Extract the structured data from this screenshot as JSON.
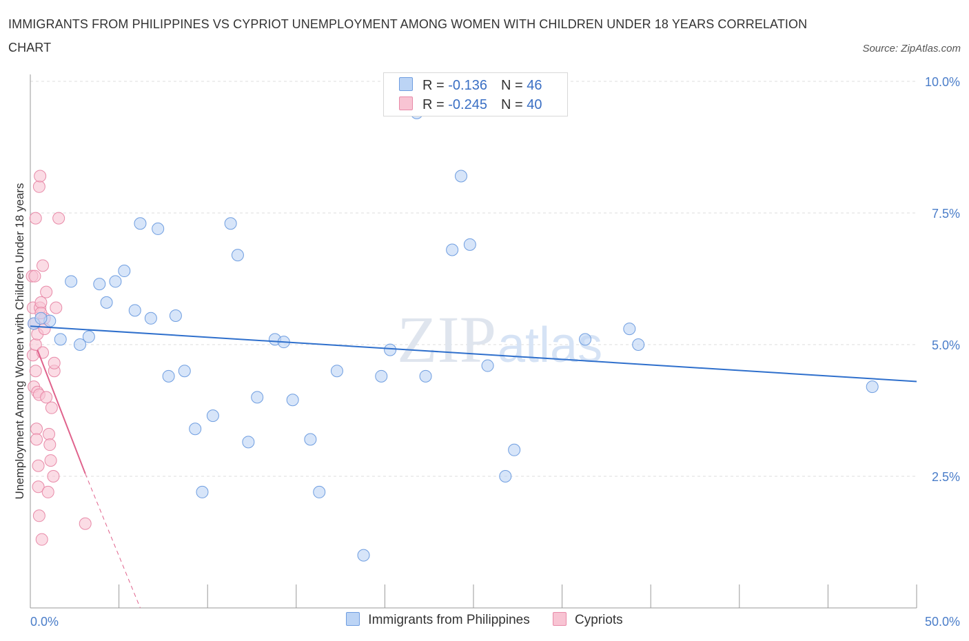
{
  "title": "IMMIGRANTS FROM PHILIPPINES VS CYPRIOT UNEMPLOYMENT AMONG WOMEN WITH CHILDREN UNDER 18 YEARS CORRELATION CHART",
  "source": "Source: ZipAtlas.com",
  "watermark": {
    "zip": "ZIP",
    "atlas": "atlas"
  },
  "colors": {
    "blue_fill": "#bcd4f5",
    "blue_stroke": "#6e9de0",
    "blue_line": "#2e6fcc",
    "pink_fill": "#f8c4d3",
    "pink_stroke": "#e88aa8",
    "pink_line": "#e0628c",
    "axis_text": "#4a7dc9",
    "grid": "#dddddd"
  },
  "legend_top": [
    {
      "r_label": "R = ",
      "r_value": "-0.136",
      "n_label": "N = ",
      "n_value": "46"
    },
    {
      "r_label": "R = ",
      "r_value": "-0.245",
      "n_label": "N = ",
      "n_value": "40"
    }
  ],
  "legend_bottom": [
    "Immigrants from Philippines",
    "Cypriots"
  ],
  "chart_data": {
    "type": "scatter",
    "title": "IMMIGRANTS FROM PHILIPPINES VS CYPRIOT UNEMPLOYMENT AMONG WOMEN WITH CHILDREN UNDER 18 YEARS CORRELATION CHART",
    "xlabel": "",
    "ylabel": "Unemployment Among Women with Children Under 18 years",
    "xlim": [
      0,
      50
    ],
    "ylim": [
      0,
      10
    ],
    "x_tick_labels": [
      "0.0%",
      "50.0%"
    ],
    "y_ticks": [
      2.5,
      5.0,
      7.5,
      10.0
    ],
    "y_tick_labels": [
      "2.5%",
      "5.0%",
      "7.5%",
      "10.0%"
    ],
    "series": [
      {
        "name": "Immigrants from Philippines",
        "color": "blue",
        "r": -0.136,
        "n": 46,
        "trend": {
          "x0": 0,
          "y0": 5.35,
          "x1": 50,
          "y1": 4.3,
          "dashed_to": null
        },
        "points": [
          [
            0.2,
            5.4
          ],
          [
            1.1,
            5.45
          ],
          [
            1.7,
            5.1
          ],
          [
            2.3,
            6.2
          ],
          [
            2.8,
            5.0
          ],
          [
            3.3,
            5.15
          ],
          [
            3.9,
            6.15
          ],
          [
            4.3,
            5.8
          ],
          [
            4.8,
            6.2
          ],
          [
            5.3,
            6.4
          ],
          [
            5.9,
            5.65
          ],
          [
            6.2,
            7.3
          ],
          [
            6.8,
            5.5
          ],
          [
            7.2,
            7.2
          ],
          [
            7.8,
            4.4
          ],
          [
            8.2,
            5.55
          ],
          [
            8.7,
            4.5
          ],
          [
            9.3,
            3.4
          ],
          [
            9.7,
            2.2
          ],
          [
            10.3,
            3.65
          ],
          [
            11.3,
            7.3
          ],
          [
            11.7,
            6.7
          ],
          [
            12.3,
            3.15
          ],
          [
            12.8,
            4.0
          ],
          [
            13.8,
            5.1
          ],
          [
            14.3,
            5.05
          ],
          [
            14.8,
            3.95
          ],
          [
            15.8,
            3.2
          ],
          [
            16.3,
            2.2
          ],
          [
            17.3,
            4.5
          ],
          [
            18.8,
            1.0
          ],
          [
            19.8,
            4.4
          ],
          [
            20.3,
            4.9
          ],
          [
            21.8,
            9.4
          ],
          [
            22.3,
            4.4
          ],
          [
            23.8,
            6.8
          ],
          [
            24.3,
            8.2
          ],
          [
            24.8,
            6.9
          ],
          [
            25.8,
            4.6
          ],
          [
            26.8,
            2.5
          ],
          [
            27.3,
            3.0
          ],
          [
            31.3,
            5.1
          ],
          [
            33.8,
            5.3
          ],
          [
            34.3,
            5.0
          ],
          [
            47.5,
            4.2
          ],
          [
            0.6,
            5.5
          ]
        ]
      },
      {
        "name": "Cypriots",
        "color": "pink",
        "r": -0.245,
        "n": 40,
        "trend": {
          "x0": 0.4,
          "y0": 4.9,
          "x1": 3.1,
          "y1": 2.55,
          "dashed_to": [
            6.2,
            0.0
          ]
        },
        "points": [
          [
            0.1,
            6.3
          ],
          [
            0.15,
            5.7
          ],
          [
            0.15,
            4.8
          ],
          [
            0.2,
            4.2
          ],
          [
            0.2,
            5.4
          ],
          [
            0.3,
            7.4
          ],
          [
            0.3,
            5.0
          ],
          [
            0.3,
            4.5
          ],
          [
            0.35,
            3.4
          ],
          [
            0.35,
            3.2
          ],
          [
            0.4,
            5.2
          ],
          [
            0.4,
            4.1
          ],
          [
            0.45,
            2.3
          ],
          [
            0.45,
            2.7
          ],
          [
            0.5,
            1.75
          ],
          [
            0.5,
            4.05
          ],
          [
            0.5,
            8.0
          ],
          [
            0.55,
            8.2
          ],
          [
            0.55,
            5.7
          ],
          [
            0.6,
            5.8
          ],
          [
            0.65,
            1.3
          ],
          [
            0.7,
            4.85
          ],
          [
            0.7,
            6.5
          ],
          [
            0.8,
            5.3
          ],
          [
            0.8,
            5.5
          ],
          [
            0.9,
            6.0
          ],
          [
            1.0,
            2.2
          ],
          [
            1.05,
            3.3
          ],
          [
            1.1,
            3.1
          ],
          [
            1.15,
            2.8
          ],
          [
            1.2,
            3.8
          ],
          [
            1.3,
            2.5
          ],
          [
            1.35,
            4.5
          ],
          [
            1.35,
            4.65
          ],
          [
            1.45,
            5.7
          ],
          [
            0.25,
            6.3
          ],
          [
            0.9,
            4.0
          ],
          [
            1.6,
            7.4
          ],
          [
            3.1,
            1.6
          ],
          [
            0.6,
            5.6
          ]
        ]
      }
    ]
  }
}
